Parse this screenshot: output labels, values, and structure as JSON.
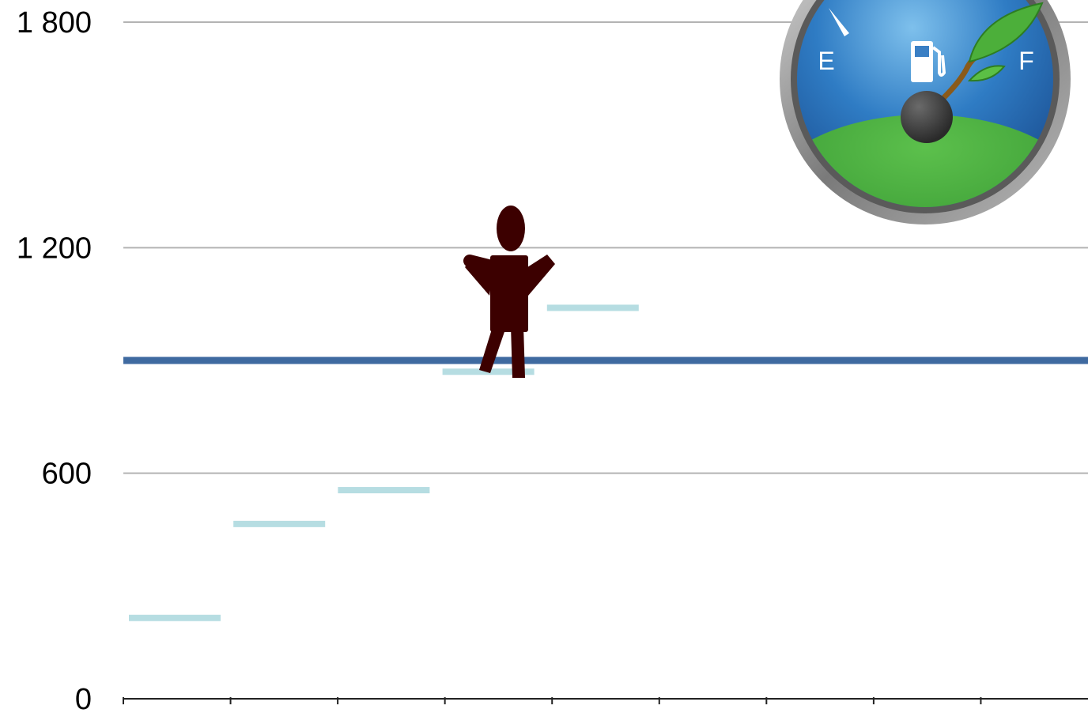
{
  "chart_data": {
    "type": "bar",
    "title": "",
    "xlabel": "",
    "ylabel": "",
    "ylim": [
      0,
      1800
    ],
    "y_ticks": [
      0,
      600,
      1200,
      1800
    ],
    "y_tick_labels": [
      "0",
      "600",
      "1 200",
      "1 800"
    ],
    "x_slots": 9,
    "grid": true,
    "series": [
      {
        "values": [
          215,
          465,
          555,
          870,
          1040
        ],
        "color": "#b6dde2"
      }
    ],
    "reference_line": {
      "value": 900,
      "color": "#3f6aa0"
    },
    "decorations": {
      "gauge": {
        "labels": {
          "empty": "E",
          "full": "F"
        },
        "icons": [
          "fuel-pump-icon",
          "leaf-icon"
        ]
      },
      "person_icon": "person-icon"
    }
  }
}
